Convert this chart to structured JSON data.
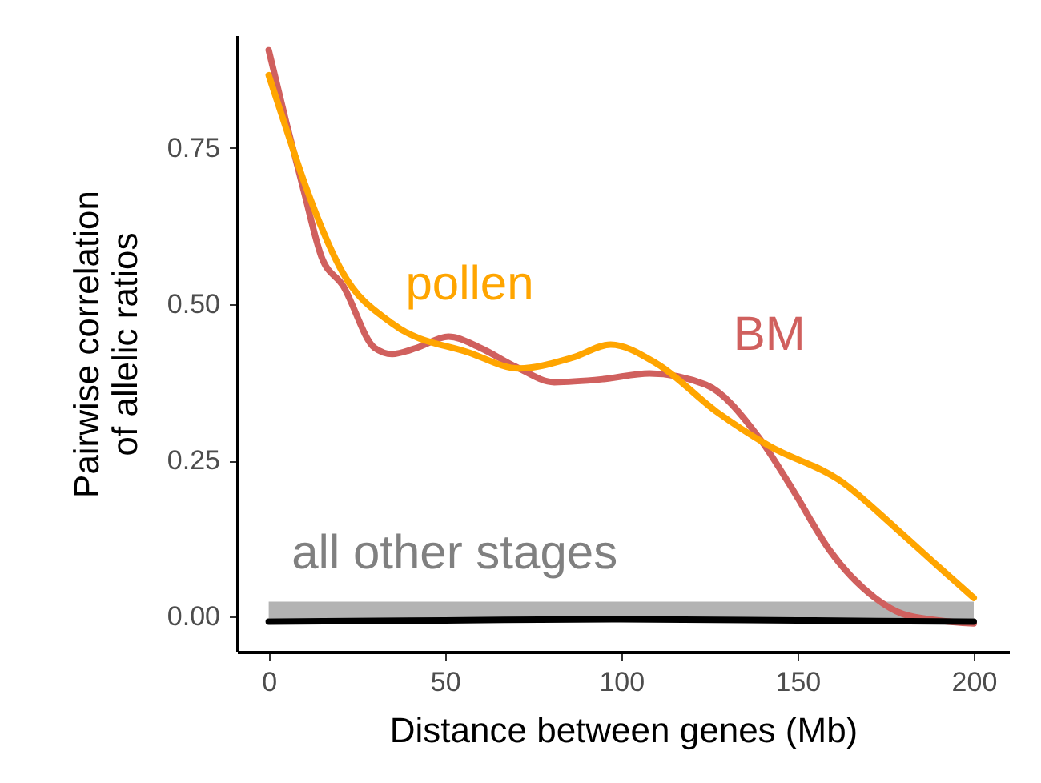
{
  "chart_data": {
    "type": "line",
    "xlabel": "Distance between genes (Mb)",
    "ylabel": "Pairwise correlation\nof allelic ratios",
    "xlim": [
      -9,
      210
    ],
    "xticks": [
      0,
      50,
      100,
      150,
      200
    ],
    "ylim": [
      -0.056,
      0.93
    ],
    "yticks": [
      {
        "value": 0,
        "label": "0.00"
      },
      0.25,
      {
        "value": 0.5,
        "label": "0.50"
      },
      0.75
    ],
    "line_style": "solid",
    "marker": "none",
    "series": [
      {
        "name": "BM",
        "color": "#d0605e",
        "x": [
          0,
          5,
          10,
          15,
          21,
          30,
          35,
          42,
          51,
          60,
          70,
          81,
          95,
          108,
          124,
          139,
          149,
          159,
          172,
          180,
          190,
          200
        ],
        "values": [
          0.906,
          0.79,
          0.68,
          0.575,
          0.53,
          0.43,
          0.42,
          0.43,
          0.448,
          0.43,
          0.4,
          0.375,
          0.38,
          0.389,
          0.371,
          0.287,
          0.2,
          0.107,
          0.03,
          0.004,
          -0.006,
          -0.011
        ]
      },
      {
        "name": "pollen",
        "color": "#ffa500",
        "x": [
          0,
          5,
          10,
          21,
          35,
          57,
          71,
          86,
          97,
          110,
          127,
          142,
          162,
          178,
          190,
          200
        ],
        "values": [
          0.866,
          0.78,
          0.696,
          0.55,
          0.469,
          0.422,
          0.397,
          0.414,
          0.435,
          0.405,
          0.328,
          0.273,
          0.218,
          0.141,
          0.08,
          0.03
        ]
      },
      {
        "name": "all other stages",
        "color": "#000000",
        "x": [
          0,
          50,
          100,
          150,
          200
        ],
        "values": [
          -0.008,
          -0.006,
          -0.004,
          -0.006,
          -0.008
        ],
        "lower": [
          -0.003,
          -0.003,
          -0.003,
          -0.003,
          -0.003
        ],
        "upper": [
          0.024,
          0.024,
          0.024,
          0.024,
          0.024
        ]
      }
    ]
  }
}
